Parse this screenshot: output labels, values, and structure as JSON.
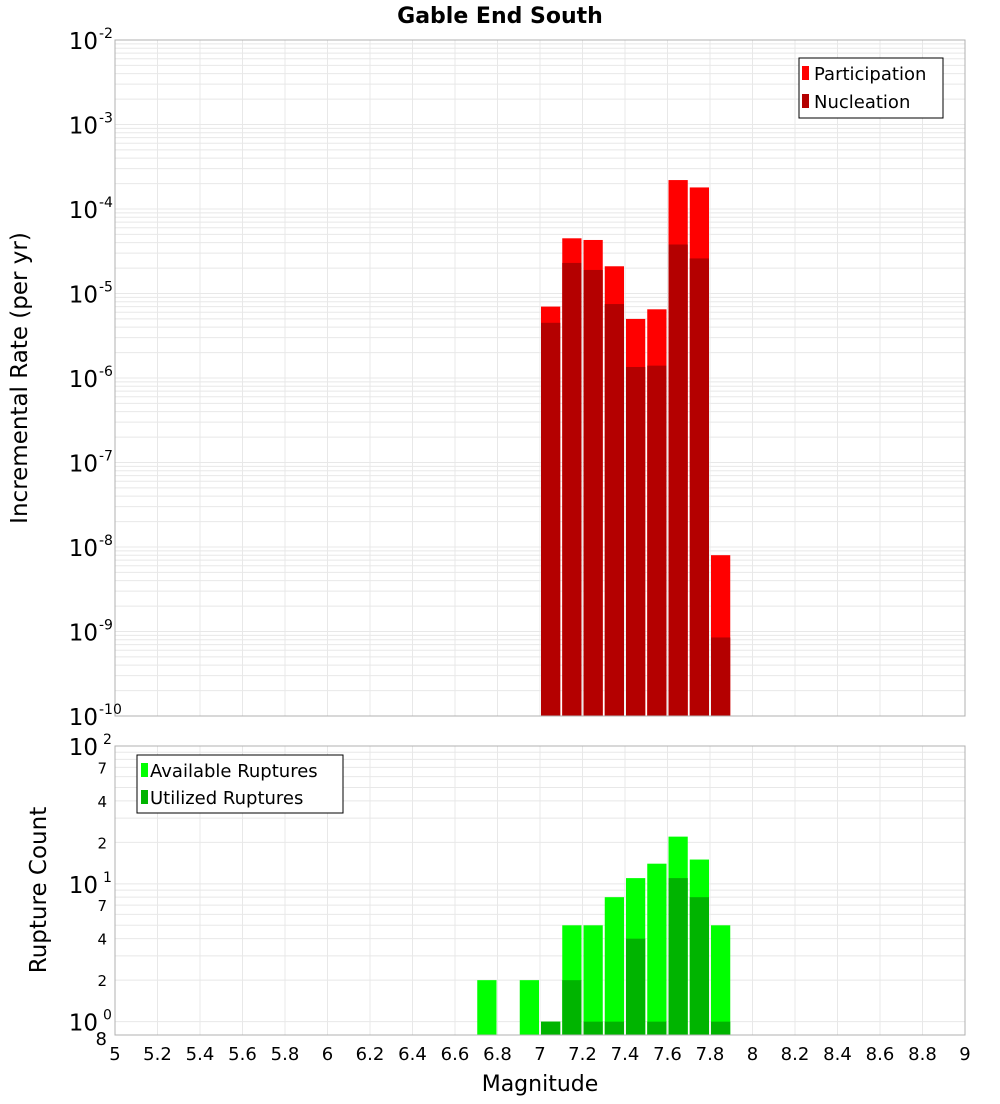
{
  "title": "Gable End South",
  "xlabel": "Magnitude",
  "x_ticks": [
    "5",
    "5.2",
    "5.4",
    "5.6",
    "5.8",
    "6",
    "6.2",
    "6.4",
    "6.6",
    "6.8",
    "7",
    "7.2",
    "7.4",
    "7.6",
    "7.8",
    "8",
    "8.2",
    "8.4",
    "8.6",
    "8.8",
    "9"
  ],
  "colors": {
    "participation": "#ff0000",
    "nucleation": "#b40000",
    "available": "#00ff00",
    "utilized": "#00b400",
    "grid": "#e8e8e8",
    "frame": "#b0b0b0"
  },
  "chart_data": [
    {
      "type": "bar",
      "title": "Gable End South",
      "xlabel": "Magnitude",
      "ylabel": "Incremental Rate (per yr)",
      "xlim": [
        5,
        9
      ],
      "ylim": [
        1e-10,
        0.01
      ],
      "yscale": "log",
      "grid": true,
      "legend_position": "top-right",
      "y_tick_bases": [
        "10",
        "10",
        "10",
        "10",
        "10",
        "10",
        "10",
        "10",
        "10"
      ],
      "y_tick_exponents": [
        "-2",
        "-3",
        "-4",
        "-5",
        "-6",
        "-7",
        "-8",
        "-9",
        "-10"
      ],
      "x": [
        7.05,
        7.15,
        7.25,
        7.35,
        7.45,
        7.55,
        7.65,
        7.75,
        7.85
      ],
      "series": [
        {
          "name": "Participation",
          "values": [
            7e-06,
            4.5e-05,
            4.3e-05,
            2.1e-05,
            5e-06,
            6.5e-06,
            0.00022,
            0.00018,
            8e-09
          ]
        },
        {
          "name": "Nucleation",
          "values": [
            4.5e-06,
            2.3e-05,
            1.9e-05,
            7.5e-06,
            1.35e-06,
            1.4e-06,
            3.8e-05,
            2.6e-05,
            8.5e-10
          ]
        }
      ]
    },
    {
      "type": "bar",
      "xlabel": "Magnitude",
      "ylabel": "Rupture Count",
      "xlim": [
        5,
        9
      ],
      "ylim": [
        0.8,
        100
      ],
      "yscale": "log",
      "grid": true,
      "legend_position": "top-left",
      "major_ticks": [
        {
          "base": "10",
          "exp": "2"
        },
        {
          "base": "10",
          "exp": "1"
        },
        {
          "base": "10",
          "exp": "0"
        }
      ],
      "minor_ticks": [
        "7",
        "4",
        "2",
        "7",
        "4",
        "2",
        "8"
      ],
      "x": [
        6.75,
        6.95,
        7.05,
        7.15,
        7.25,
        7.35,
        7.45,
        7.55,
        7.65,
        7.75,
        7.85
      ],
      "series": [
        {
          "name": "Available Ruptures",
          "values": [
            2,
            2,
            1,
            5,
            5,
            8,
            11,
            14,
            22,
            15,
            5
          ]
        },
        {
          "name": "Utilized Ruptures",
          "values": [
            0,
            0,
            1,
            2,
            1,
            1,
            4,
            1,
            11,
            8,
            1
          ]
        }
      ]
    }
  ]
}
